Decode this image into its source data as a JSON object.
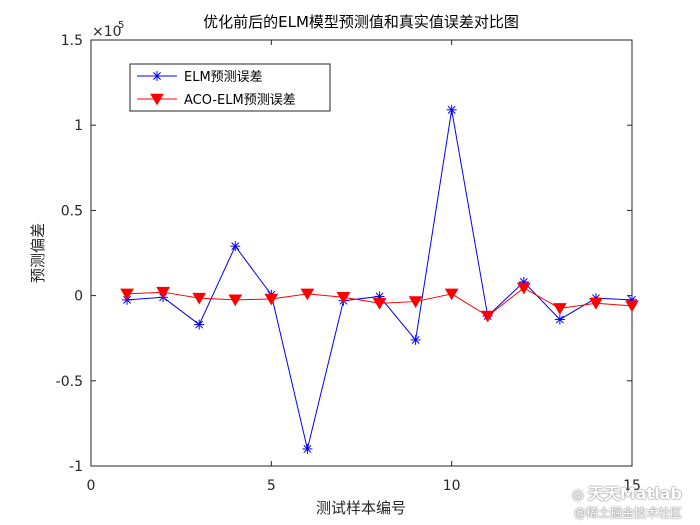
{
  "chart_data": {
    "type": "line",
    "title": "优化前后的ELM模型预测值和真实值误差对比图",
    "xlabel": "测试样本编号",
    "ylabel": "预测偏差",
    "xlim": [
      0,
      15
    ],
    "ylim": [
      -100000,
      150000
    ],
    "x_ticks": [
      0,
      5,
      10,
      15
    ],
    "y_ticks": [
      -1,
      -0.5,
      0,
      0.5,
      1,
      1.5
    ],
    "y_tick_labels": [
      "-1",
      "-0.5",
      "0",
      "0.5",
      "1",
      "1.5"
    ],
    "y_exponent_label": "×10",
    "y_exponent_power": "5",
    "grid": false,
    "legend_position": "top-left",
    "x": [
      1,
      2,
      3,
      4,
      5,
      6,
      7,
      8,
      9,
      10,
      11,
      12,
      13,
      14,
      15
    ],
    "series": [
      {
        "name": "ELM预测误差",
        "color": "#0000ff",
        "marker": "asterisk",
        "values": [
          -2500,
          -1000,
          -17000,
          29000,
          500,
          -90000,
          -3000,
          -500,
          -26000,
          109000,
          -12000,
          8000,
          -14000,
          -1500,
          -2500
        ]
      },
      {
        "name": "ACO-ELM预测误差",
        "color": "#ff0000",
        "marker": "triangle-down",
        "values": [
          1000,
          2000,
          -1500,
          -2500,
          -2000,
          1000,
          -1000,
          -4500,
          -3500,
          1000,
          -12000,
          4500,
          -7500,
          -4500,
          -6000
        ]
      }
    ]
  },
  "watermark": {
    "line1": "天天Matlab",
    "line2": "@稀土掘金技术社区"
  }
}
